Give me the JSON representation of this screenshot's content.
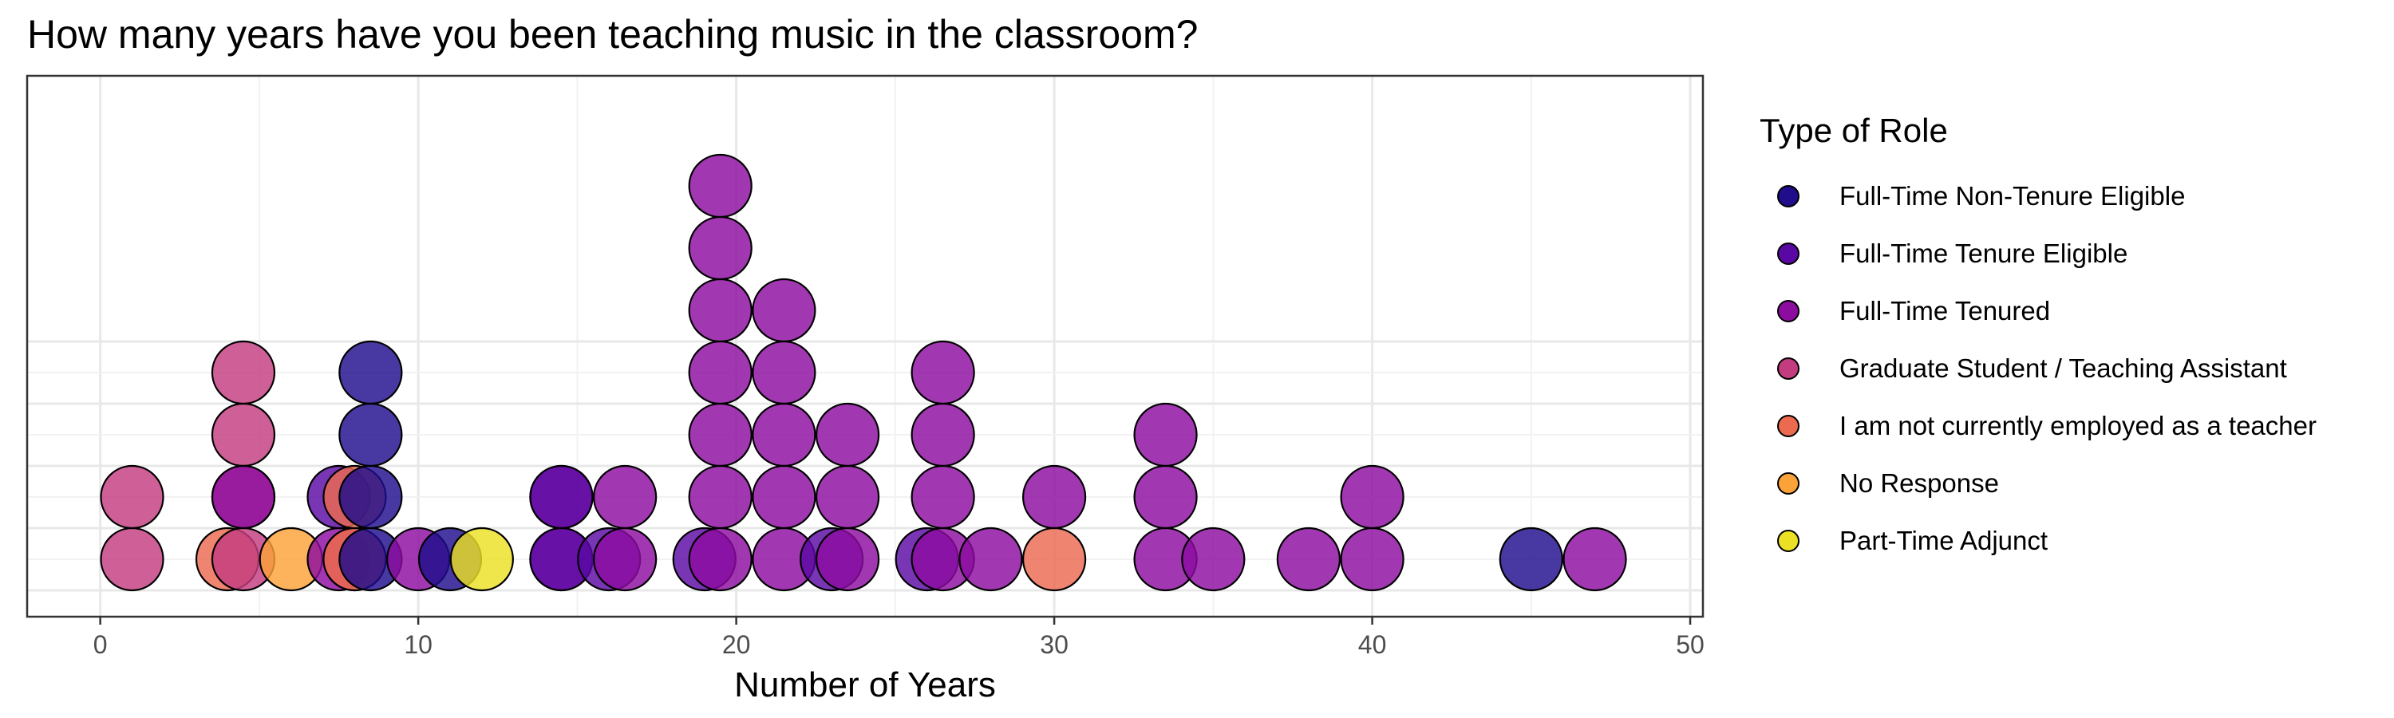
{
  "chart_data": {
    "type": "dot",
    "title": "How many years have you been teaching music in the classroom?",
    "xlabel": "Number of Years",
    "ylabel": "",
    "xlim": [
      -2.3,
      50.4
    ],
    "xticks": [
      0,
      10,
      20,
      30,
      40,
      50
    ],
    "grid": true,
    "legend_position": "right",
    "legend": {
      "title": "Type of Role",
      "items": [
        {
          "name": "Full-Time Non-Tenure Eligible",
          "color": "#1F0D8C"
        },
        {
          "name": "Full-Time Tenure Eligible",
          "color": "#5A08A4"
        },
        {
          "name": "Full-Time Tenured",
          "color": "#8C0CA0"
        },
        {
          "name": "Graduate Student / Teaching Assistant",
          "color": "#C43C80"
        },
        {
          "name": "I am not currently employed as a teacher",
          "color": "#EC6A50"
        },
        {
          "name": "No Response",
          "color": "#FBA238"
        },
        {
          "name": "Part-Time Adjunct",
          "color": "#ECE024"
        }
      ]
    },
    "points": [
      {
        "x": 1,
        "stack": 1,
        "role": "Graduate Student / Teaching Assistant"
      },
      {
        "x": 1,
        "stack": 2,
        "role": "Graduate Student / Teaching Assistant"
      },
      {
        "x": 4,
        "stack": 1,
        "role": "I am not currently employed as a teacher"
      },
      {
        "x": 4.5,
        "stack": 1,
        "role": "Graduate Student / Teaching Assistant"
      },
      {
        "x": 4.5,
        "stack": 2,
        "role": "Graduate Student / Teaching Assistant"
      },
      {
        "x": 4.5,
        "stack": 3,
        "role": "Graduate Student / Teaching Assistant"
      },
      {
        "x": 4.5,
        "stack": 4,
        "role": "Graduate Student / Teaching Assistant"
      },
      {
        "x": 4.5,
        "stack": 2,
        "role": "Full-Time Tenured"
      },
      {
        "x": 6,
        "stack": 1,
        "role": "No Response"
      },
      {
        "x": 7.5,
        "stack": 1,
        "role": "Full-Time Tenured"
      },
      {
        "x": 7.5,
        "stack": 2,
        "role": "Full-Time Tenure Eligible"
      },
      {
        "x": 8,
        "stack": 1,
        "role": "Graduate Student / Teaching Assistant"
      },
      {
        "x": 8,
        "stack": 1,
        "role": "I am not currently employed as a teacher"
      },
      {
        "x": 8,
        "stack": 2,
        "role": "I am not currently employed as a teacher"
      },
      {
        "x": 8.5,
        "stack": 1,
        "role": "Full-Time Non-Tenure Eligible"
      },
      {
        "x": 8.5,
        "stack": 2,
        "role": "Full-Time Non-Tenure Eligible"
      },
      {
        "x": 8.5,
        "stack": 3,
        "role": "Full-Time Non-Tenure Eligible"
      },
      {
        "x": 8.5,
        "stack": 4,
        "role": "Full-Time Non-Tenure Eligible"
      },
      {
        "x": 10,
        "stack": 1,
        "role": "Full-Time Tenured"
      },
      {
        "x": 11,
        "stack": 1,
        "role": "Full-Time Non-Tenure Eligible"
      },
      {
        "x": 12,
        "stack": 1,
        "role": "Part-Time Adjunct"
      },
      {
        "x": 14.5,
        "stack": 1,
        "role": "Full-Time Tenured"
      },
      {
        "x": 14.5,
        "stack": 1,
        "role": "Full-Time Tenure Eligible"
      },
      {
        "x": 14.5,
        "stack": 2,
        "role": "Full-Time Tenured"
      },
      {
        "x": 14.5,
        "stack": 2,
        "role": "Full-Time Tenure Eligible"
      },
      {
        "x": 16,
        "stack": 1,
        "role": "Full-Time Tenure Eligible"
      },
      {
        "x": 16.5,
        "stack": 1,
        "role": "Full-Time Tenured"
      },
      {
        "x": 16.5,
        "stack": 2,
        "role": "Full-Time Tenured"
      },
      {
        "x": 19,
        "stack": 1,
        "role": "Full-Time Tenure Eligible"
      },
      {
        "x": 19.5,
        "stack": 1,
        "role": "Full-Time Tenured"
      },
      {
        "x": 19.5,
        "stack": 2,
        "role": "Full-Time Tenured"
      },
      {
        "x": 19.5,
        "stack": 3,
        "role": "Full-Time Tenured"
      },
      {
        "x": 19.5,
        "stack": 4,
        "role": "Full-Time Tenured"
      },
      {
        "x": 19.5,
        "stack": 5,
        "role": "Full-Time Tenured"
      },
      {
        "x": 19.5,
        "stack": 6,
        "role": "Full-Time Tenured"
      },
      {
        "x": 19.5,
        "stack": 7,
        "role": "Full-Time Tenured"
      },
      {
        "x": 21.5,
        "stack": 1,
        "role": "Full-Time Tenured"
      },
      {
        "x": 21.5,
        "stack": 2,
        "role": "Full-Time Tenured"
      },
      {
        "x": 21.5,
        "stack": 3,
        "role": "Full-Time Tenured"
      },
      {
        "x": 21.5,
        "stack": 4,
        "role": "Full-Time Tenured"
      },
      {
        "x": 21.5,
        "stack": 5,
        "role": "Full-Time Tenured"
      },
      {
        "x": 23,
        "stack": 1,
        "role": "Full-Time Tenure Eligible"
      },
      {
        "x": 23.5,
        "stack": 1,
        "role": "Full-Time Tenured"
      },
      {
        "x": 23.5,
        "stack": 2,
        "role": "Full-Time Tenured"
      },
      {
        "x": 23.5,
        "stack": 3,
        "role": "Full-Time Tenured"
      },
      {
        "x": 26,
        "stack": 1,
        "role": "Full-Time Tenure Eligible"
      },
      {
        "x": 26.5,
        "stack": 1,
        "role": "Full-Time Tenured"
      },
      {
        "x": 26.5,
        "stack": 2,
        "role": "Full-Time Tenured"
      },
      {
        "x": 26.5,
        "stack": 3,
        "role": "Full-Time Tenured"
      },
      {
        "x": 26.5,
        "stack": 4,
        "role": "Full-Time Tenured"
      },
      {
        "x": 28,
        "stack": 1,
        "role": "Full-Time Tenured"
      },
      {
        "x": 30,
        "stack": 1,
        "role": "I am not currently employed as a teacher"
      },
      {
        "x": 30,
        "stack": 2,
        "role": "Full-Time Tenured"
      },
      {
        "x": 33.5,
        "stack": 1,
        "role": "Full-Time Tenured"
      },
      {
        "x": 33.5,
        "stack": 2,
        "role": "Full-Time Tenured"
      },
      {
        "x": 33.5,
        "stack": 3,
        "role": "Full-Time Tenured"
      },
      {
        "x": 35,
        "stack": 1,
        "role": "Full-Time Tenured"
      },
      {
        "x": 38,
        "stack": 1,
        "role": "Full-Time Tenured"
      },
      {
        "x": 40,
        "stack": 1,
        "role": "Full-Time Tenured"
      },
      {
        "x": 40,
        "stack": 2,
        "role": "Full-Time Tenured"
      },
      {
        "x": 45,
        "stack": 1,
        "role": "Full-Time Non-Tenure Eligible"
      },
      {
        "x": 47,
        "stack": 1,
        "role": "Full-Time Tenured"
      }
    ]
  }
}
